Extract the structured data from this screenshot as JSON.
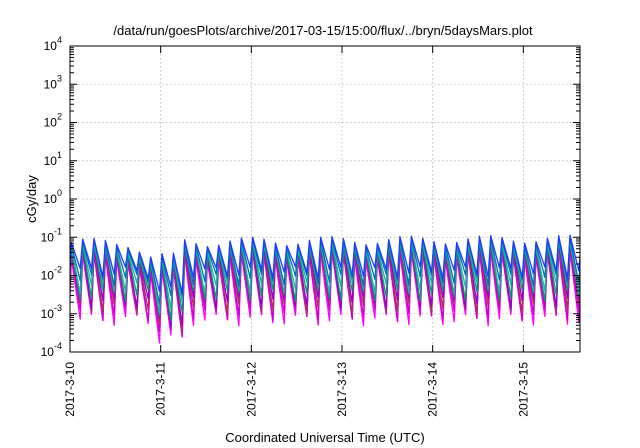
{
  "chart_data": {
    "type": "line",
    "title": "/data/run/goesPlots/archive/2017-03-15/15:00/flux/../bryn/5daysMars.plot",
    "xlabel": "Coordinated Universal Time (UTC)",
    "ylabel": "cGy/day",
    "y_scale": "log",
    "ylim": [
      0.0001,
      10000
    ],
    "xlim": [
      "2017-03-10T00:00",
      "2017-03-15T15:00"
    ],
    "grid": true,
    "x_ticks": [
      "2017-3-10",
      "2017-3-11",
      "2017-3-12",
      "2017-3-13",
      "2017-3-14",
      "2017-3-15"
    ],
    "y_ticks": [
      {
        "value": 0.0001,
        "base": "10",
        "exp": "-4"
      },
      {
        "value": 0.001,
        "base": "10",
        "exp": "-3"
      },
      {
        "value": 0.01,
        "base": "10",
        "exp": "-2"
      },
      {
        "value": 0.1,
        "base": "10",
        "exp": "-1"
      },
      {
        "value": 1,
        "base": "10",
        "exp": "0"
      },
      {
        "value": 10,
        "base": "10",
        "exp": "1"
      },
      {
        "value": 100,
        "base": "10",
        "exp": "2"
      },
      {
        "value": 1000,
        "base": "10",
        "exp": "3"
      },
      {
        "value": 10000,
        "base": "10",
        "exp": "4"
      }
    ],
    "cycle_hours": 3,
    "series": [
      {
        "color": "#ff00ff",
        "peak": 0.033,
        "trough": 0.0008
      },
      {
        "color": "#cc00cc",
        "peak": 0.04,
        "trough": 0.0011
      },
      {
        "color": "#b03060",
        "peak": 0.048,
        "trough": 0.0016
      },
      {
        "color": "#9400d3",
        "peak": 0.055,
        "trough": 0.0023
      },
      {
        "color": "#009e73",
        "peak": 0.06,
        "trough": 0.0035
      },
      {
        "color": "#20b2aa",
        "peak": 0.066,
        "trough": 0.0055
      },
      {
        "color": "#0072b2",
        "peak": 0.075,
        "trough": 0.009
      },
      {
        "color": "#1e3cff",
        "peak": 0.085,
        "trough": 0.014
      }
    ],
    "dip_event": {
      "date": "2017-03-11T00:00",
      "min": 0.00016
    }
  }
}
